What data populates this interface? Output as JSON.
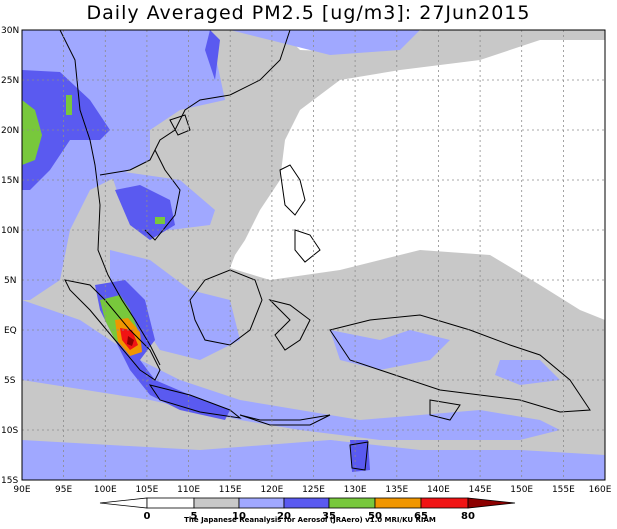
{
  "title": "Daily Averaged PM2.5 [ug/m3]: 27Jun2015",
  "map": {
    "lat_labels": [
      "30N",
      "25N",
      "20N",
      "15N",
      "10N",
      "5N",
      "EQ",
      "5S",
      "10S",
      "15S"
    ],
    "lon_labels": [
      "90E",
      "95E",
      "100E",
      "105E",
      "110E",
      "115E",
      "120E",
      "125E",
      "130E",
      "135E",
      "140E",
      "145E",
      "150E",
      "155E",
      "160E"
    ],
    "extent": {
      "lon": [
        90,
        160
      ],
      "lat": [
        -15,
        30
      ]
    },
    "grid": "dashed"
  },
  "legend": {
    "breaks": [
      "0",
      "5",
      "10",
      "20",
      "35",
      "50",
      "65",
      "80"
    ],
    "colors": {
      "below_5": "#ffffff",
      "5_10": "#ffffff",
      "10_20": "#c8c8c8",
      "20_35": "#a0a8ff",
      "35_50": "#5a5af0",
      "50_65": "#78c83c",
      "65_80": "#f09600",
      "80_plus_red": "#f01414",
      "over_80": "#8c0000"
    }
  },
  "credit": "The Japanese Reanalysis for Aerosol (JRAero) v1.0 MRI/KU RIAM"
}
